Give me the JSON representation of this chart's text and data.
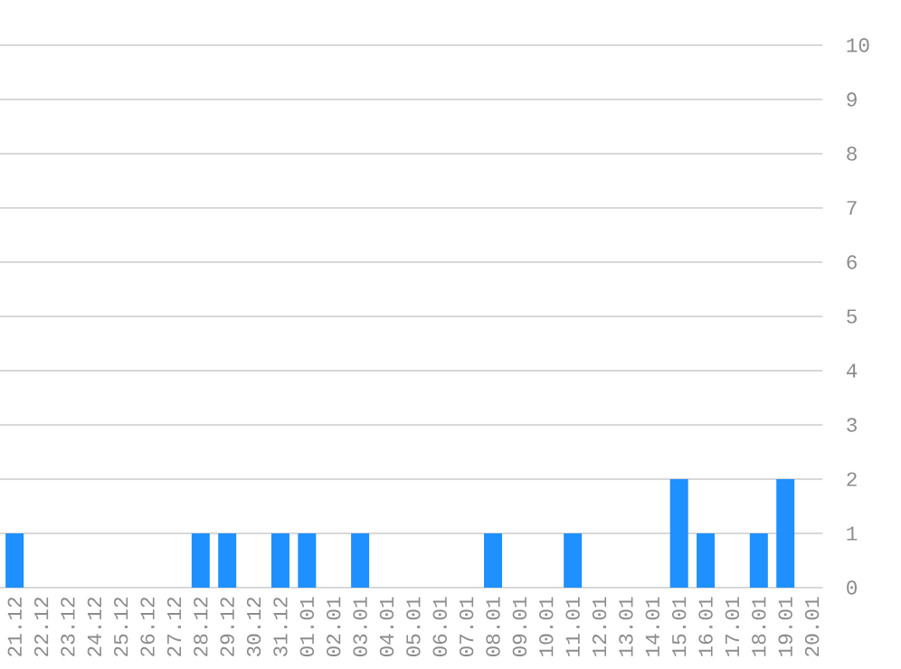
{
  "chart_data": {
    "type": "bar",
    "categories": [
      "21.12",
      "22.12",
      "23.12",
      "24.12",
      "25.12",
      "26.12",
      "27.12",
      "28.12",
      "29.12",
      "30.12",
      "31.12",
      "01.01",
      "02.01",
      "03.01",
      "04.01",
      "05.01",
      "06.01",
      "07.01",
      "08.01",
      "09.01",
      "10.01",
      "11.01",
      "12.01",
      "13.01",
      "14.01",
      "15.01",
      "16.01",
      "17.01",
      "18.01",
      "19.01",
      "20.01"
    ],
    "values": [
      1,
      0,
      0,
      0,
      0,
      0,
      0,
      1,
      1,
      0,
      1,
      1,
      0,
      1,
      0,
      0,
      0,
      0,
      1,
      0,
      0,
      1,
      0,
      0,
      0,
      2,
      1,
      0,
      1,
      2,
      0
    ],
    "color": "#1e90ff",
    "ylim": [
      0,
      10
    ],
    "yticks": [
      0,
      1,
      2,
      3,
      4,
      5,
      6,
      7,
      8,
      9,
      10
    ],
    "grid": "y"
  }
}
